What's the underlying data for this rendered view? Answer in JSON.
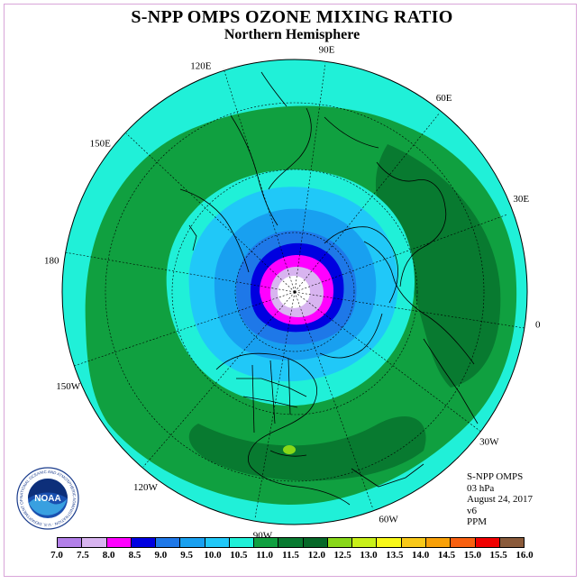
{
  "header": {
    "title": "S-NPP OMPS OZONE MIXING RATIO",
    "subtitle": "Northern Hemisphere"
  },
  "map": {
    "projection": "north polar stereographic",
    "longitude_labels": [
      {
        "text": "90E",
        "angle_deg": 90
      },
      {
        "text": "60E",
        "angle_deg": 60
      },
      {
        "text": "30E",
        "angle_deg": 30
      },
      {
        "text": "0",
        "angle_deg": 0
      },
      {
        "text": "30W",
        "angle_deg": -30
      },
      {
        "text": "60W",
        "angle_deg": -60
      },
      {
        "text": "90W",
        "angle_deg": -90
      },
      {
        "text": "120W",
        "angle_deg": -120
      },
      {
        "text": "150W",
        "angle_deg": -150
      },
      {
        "text": "180",
        "angle_deg": 180
      },
      {
        "text": "150E",
        "angle_deg": 150
      },
      {
        "text": "120E",
        "angle_deg": 120
      }
    ]
  },
  "info": {
    "instrument": "S-NPP OMPS",
    "level": "03 hPa",
    "date": "August 24, 2017",
    "version": "v6",
    "units": "PPM"
  },
  "logo": {
    "text": "NOAA",
    "ring_text": "NATIONAL OCEANIC AND ATMOSPHERIC ADMINISTRATION · U.S. DEPARTMENT OF COMMERCE"
  },
  "legend": {
    "colors": [
      "#b27fe8",
      "#d8b4f0",
      "#ff00ff",
      "#0000e0",
      "#1e78e8",
      "#18a0f0",
      "#20c8f8",
      "#20f0d8",
      "#10a040",
      "#087a30",
      "#066828",
      "#88d818",
      "#c8f018",
      "#f8f818",
      "#f8c818",
      "#f8a008",
      "#f86010",
      "#f00000",
      "#8a5a3a"
    ],
    "ticks": [
      "7.0",
      "7.5",
      "8.0",
      "8.5",
      "9.0",
      "9.5",
      "10.0",
      "10.5",
      "11.0",
      "11.5",
      "12.0",
      "12.5",
      "13.0",
      "13.5",
      "14.0",
      "14.5",
      "15.0",
      "15.5",
      "16.0"
    ]
  }
}
